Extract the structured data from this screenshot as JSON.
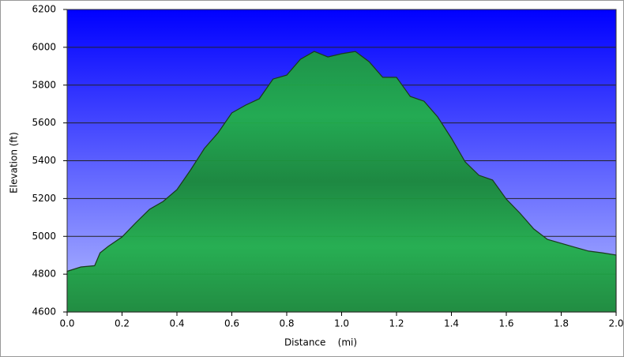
{
  "chart_data": {
    "type": "area",
    "xlabel": "Distance    (mi)",
    "ylabel": "Elevation (ft)",
    "x": [
      0.0,
      0.05,
      0.1,
      0.12,
      0.15,
      0.2,
      0.25,
      0.3,
      0.35,
      0.4,
      0.45,
      0.5,
      0.55,
      0.6,
      0.65,
      0.7,
      0.75,
      0.8,
      0.85,
      0.9,
      0.95,
      1.0,
      1.05,
      1.1,
      1.15,
      1.2,
      1.25,
      1.3,
      1.35,
      1.4,
      1.45,
      1.5,
      1.55,
      1.6,
      1.65,
      1.7,
      1.75,
      1.8,
      1.85,
      1.9,
      1.95,
      2.0
    ],
    "series": [
      {
        "name": "Elevation",
        "color": "#22aa44",
        "values": [
          4815,
          4838,
          4845,
          4913,
          4947,
          4997,
          5072,
          5143,
          5185,
          5247,
          5352,
          5465,
          5548,
          5653,
          5694,
          5728,
          5832,
          5853,
          5937,
          5978,
          5949,
          5966,
          5978,
          5924,
          5841,
          5841,
          5740,
          5715,
          5632,
          5519,
          5394,
          5323,
          5298,
          5197,
          5122,
          5039,
          4984,
          4963,
          4942,
          4922,
          4913,
          4901
        ]
      }
    ],
    "xlim": [
      0,
      2
    ],
    "ylim": [
      4600,
      6200
    ],
    "xticks": [
      {
        "value": 0,
        "label": "0.0"
      },
      0.2,
      0.4,
      0.6,
      0.8,
      {
        "value": 1,
        "label": "1.0"
      },
      1.2,
      1.4,
      1.6,
      1.8,
      {
        "value": 2,
        "label": "2.0"
      }
    ],
    "yticks": [
      4600,
      4800,
      5000,
      5200,
      5400,
      5600,
      5800,
      6000,
      6200
    ],
    "grid": true
  }
}
